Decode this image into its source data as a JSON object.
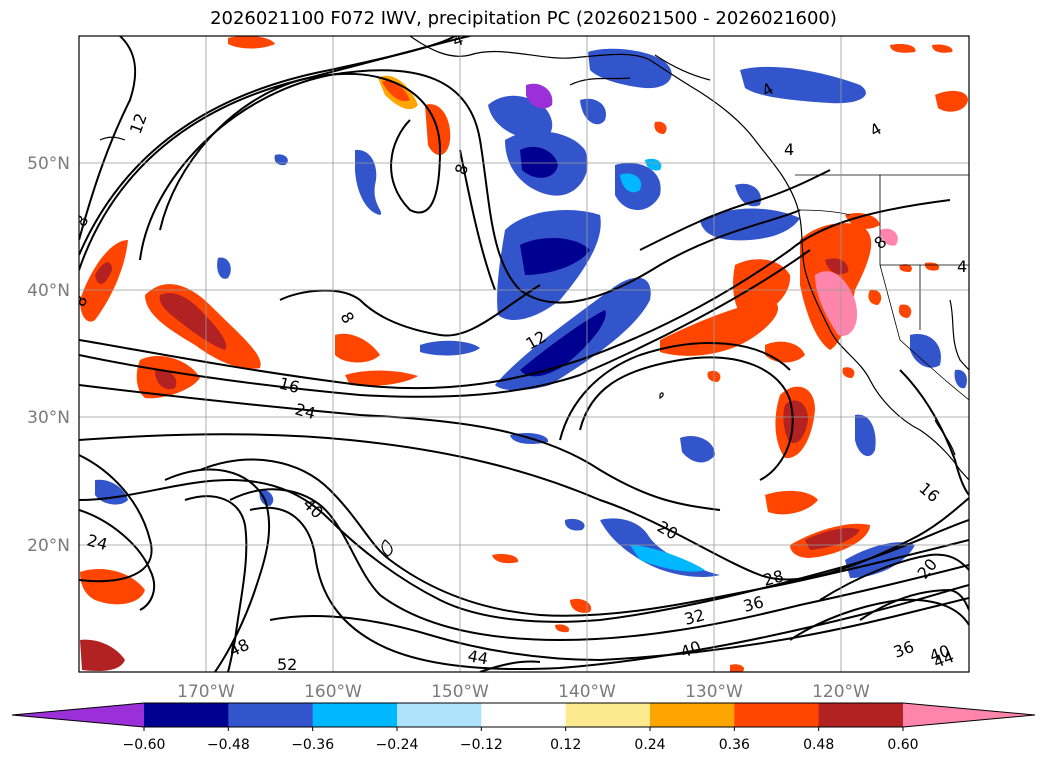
{
  "title": "2026021100 F072 IWV, precipitation PC (2026021500 - 2026021600)",
  "lat_labels": [
    "50°N",
    "40°N",
    "30°N",
    "20°N"
  ],
  "lon_labels": [
    "170°W",
    "160°W",
    "150°W",
    "140°W",
    "130°W",
    "120°W"
  ],
  "contour_labels": [
    "4",
    "4",
    "4",
    "4",
    "4",
    "12",
    "8",
    "8",
    "8",
    "8",
    "8",
    "16",
    "24",
    "12",
    "20",
    "16",
    "20",
    "24",
    "40",
    "28",
    "32",
    "36",
    "40",
    "48",
    "52",
    "44",
    "40",
    "36",
    "44"
  ],
  "colorbar": {
    "ticks": [
      "-0.60",
      "-0.48",
      "-0.36",
      "-0.24",
      "-0.12",
      "0.12",
      "0.24",
      "0.36",
      "0.48",
      "0.60"
    ],
    "colors": [
      "#9b30d9",
      "#000090",
      "#3355cc",
      "#00b8ff",
      "#aee2fb",
      "#ffffff",
      "#fde98e",
      "#ffa500",
      "#ff4500",
      "#b22222",
      "#ff85ad"
    ]
  }
}
